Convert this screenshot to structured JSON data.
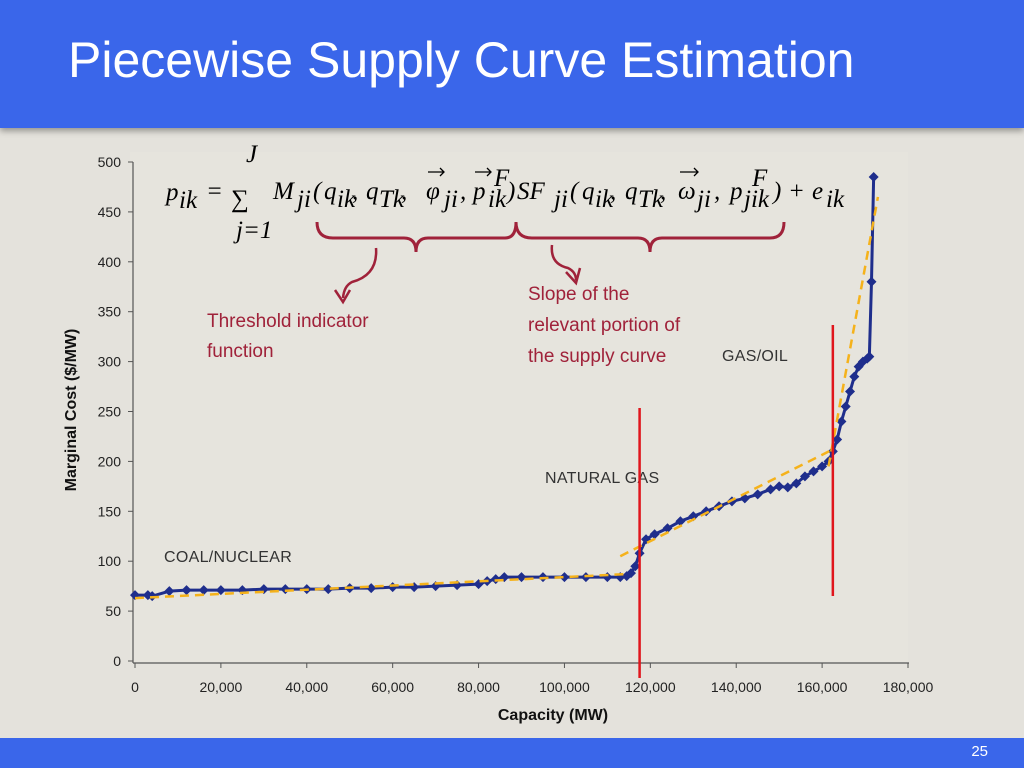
{
  "slide": {
    "title": "Piecewise Supply Curve Estimation",
    "page_number": "25"
  },
  "formula": {
    "text": "p_ik = Σ_{j=1}^{J} M_ji(q_ik, q_Tk, φ⃗_ji, p⃗_ik^F) SF_ji(q_ik, q_Tk, ω⃗_ji, p_jik^F) + e_ik",
    "p": "p",
    "ik": "ik",
    "eq": "=",
    "sigma": "∑",
    "sum_upper": "J",
    "sum_lower": "j=1",
    "M": "M",
    "ji": "ji",
    "lparen": "(",
    "q": "q",
    "Tk": "Tk",
    "comma": ",",
    "phi": "φ",
    "F": "F",
    "rparen": ")",
    "SF": "SF",
    "omega": "ω",
    "jik": "jik",
    "plus": "+",
    "e": "e"
  },
  "annotations": {
    "threshold": [
      "Threshold indicator",
      "function"
    ],
    "slope": [
      "Slope of the",
      "relevant portion of",
      "the supply curve"
    ]
  },
  "colors": {
    "title_bar": "#3a66ea",
    "data_series": "#1f2e8c",
    "fit_line": "#f5b21b",
    "threshold_line": "#e0151c",
    "brace": "#a0223a"
  },
  "chart_data": {
    "type": "line",
    "xlabel": "Capacity (MW)",
    "ylabel": "Marginal Cost ($/MW)",
    "xlim": [
      0,
      180000
    ],
    "ylim": [
      0,
      500
    ],
    "x_ticks": [
      "0",
      "20,000",
      "40,000",
      "60,000",
      "80,000",
      "100,000",
      "120,000",
      "140,000",
      "160,000",
      "180,000"
    ],
    "y_ticks": [
      "0",
      "50",
      "100",
      "150",
      "200",
      "250",
      "300",
      "350",
      "400",
      "450",
      "500"
    ],
    "grid": false,
    "region_labels": [
      "COAL/NUCLEAR",
      "NATURAL GAS",
      "GAS/OIL"
    ],
    "thresholds_x": [
      117500,
      162500
    ],
    "series": [
      {
        "marker": "diamond",
        "x": [
          0,
          3000,
          4000,
          8000,
          12000,
          16000,
          20000,
          25000,
          30000,
          35000,
          40000,
          45000,
          50000,
          55000,
          60000,
          65000,
          70000,
          75000,
          80000,
          82000,
          84000,
          86000,
          90000,
          95000,
          100000,
          105000,
          110000,
          113000,
          114500,
          115500,
          116500,
          117500,
          119000,
          121000,
          124000,
          127000,
          130000,
          133000,
          136000,
          139000,
          142000,
          145000,
          148000,
          150000,
          152000,
          154000,
          156000,
          158000,
          160000,
          161500,
          162500,
          163500,
          164500,
          165500,
          166500,
          167500,
          168500,
          169500,
          170500,
          171000,
          171500,
          172000
        ],
        "y": [
          66,
          66,
          65,
          70,
          71,
          71,
          71,
          71,
          72,
          72,
          72,
          72,
          73,
          73,
          74,
          74,
          75,
          76,
          77,
          80,
          82,
          84,
          84,
          84,
          84,
          84,
          84,
          84,
          85,
          88,
          95,
          108,
          122,
          127,
          133,
          140,
          145,
          150,
          155,
          160,
          163,
          167,
          172,
          175,
          174,
          178,
          185,
          190,
          195,
          200,
          210,
          222,
          240,
          255,
          270,
          285,
          295,
          300,
          303,
          305,
          380,
          485
        ]
      },
      {
        "style": "dashed",
        "segments": [
          {
            "x": [
              0,
              114000
            ],
            "y": [
              63,
              87
            ]
          },
          {
            "x": [
              113000,
              162500
            ],
            "y": [
              105,
              212
            ]
          },
          {
            "x": [
              161500,
              173000
            ],
            "y": [
              195,
              465
            ]
          }
        ]
      }
    ]
  }
}
